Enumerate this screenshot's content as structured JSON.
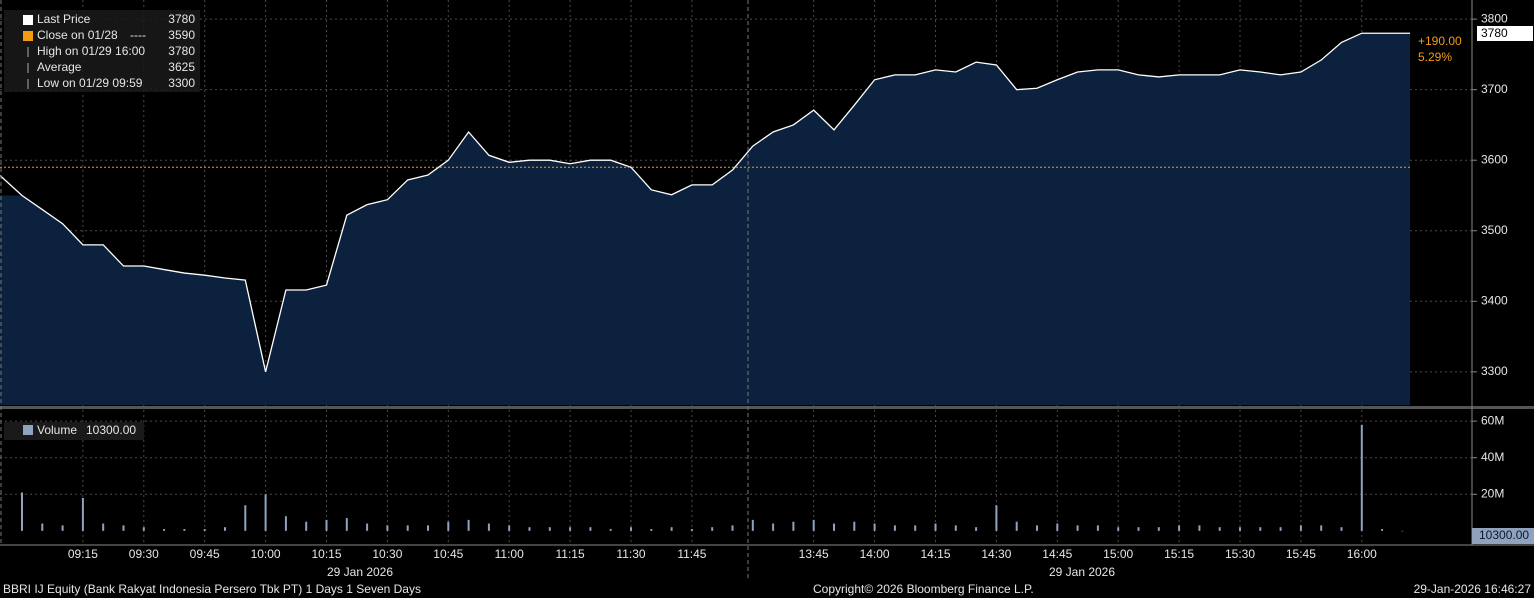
{
  "chart_data": [
    {
      "type": "area",
      "x": [
        "09:00",
        "09:05",
        "09:10",
        "09:15",
        "09:20",
        "09:25",
        "09:30",
        "09:35",
        "09:40",
        "09:45",
        "09:50",
        "09:55",
        "10:00",
        "10:05",
        "10:10",
        "10:15",
        "10:20",
        "10:25",
        "10:30",
        "10:35",
        "10:40",
        "10:45",
        "10:50",
        "10:55",
        "11:00",
        "11:05",
        "11:10",
        "11:15",
        "11:20",
        "11:25",
        "11:30",
        "11:35",
        "11:40",
        "11:45",
        "11:50",
        "11:55",
        "13:30",
        "13:35",
        "13:40",
        "13:45",
        "13:50",
        "13:55",
        "14:00",
        "14:05",
        "14:10",
        "14:15",
        "14:20",
        "14:25",
        "14:30",
        "14:35",
        "14:40",
        "14:45",
        "14:50",
        "14:55",
        "15:00",
        "15:05",
        "15:10",
        "15:15",
        "15:20",
        "15:25",
        "15:30",
        "15:35",
        "15:40",
        "15:45",
        "15:50",
        "15:55",
        "16:00",
        "16:05",
        "16:10"
      ],
      "series": [
        {
          "name": "Last Price",
          "color": "#ffffff",
          "fill": "#0b213d",
          "values": [
            3550,
            3530,
            3510,
            3480,
            3480,
            3450,
            3450,
            3445,
            3440,
            3437,
            3433,
            3430,
            3300,
            3416,
            3416,
            3423,
            3522,
            3537,
            3544,
            3572,
            3579,
            3600,
            3640,
            3607,
            3597,
            3600,
            3600,
            3595,
            3600,
            3600,
            3590,
            3558,
            3551,
            3565,
            3565,
            3586,
            3620,
            3640,
            3650,
            3671,
            3643,
            3678,
            3714,
            3721,
            3721,
            3728,
            3725,
            3739,
            3735,
            3700,
            3702,
            3714,
            3725,
            3728,
            3728,
            3721,
            3718,
            3721,
            3721,
            3721,
            3728,
            3725,
            3721,
            3725,
            3742,
            3767,
            3780,
            3780,
            3780
          ]
        }
      ],
      "legend": [
        {
          "label": "Last Price",
          "value": 3780,
          "color": "#ffffff"
        },
        {
          "label": "Close on 01/28",
          "value": 3590,
          "color": "#f39c12",
          "style": "----"
        },
        {
          "label": "High on 01/29 16:00",
          "value": 3780
        },
        {
          "label": "Average",
          "value": 3625
        },
        {
          "label": "Low on 01/29 09:59",
          "value": 3300
        }
      ],
      "change": {
        "value": 190,
        "label": "+190.00"
      },
      "change_pct": {
        "value": 5.29,
        "label": "5.29%"
      },
      "ylim": [
        3253,
        3820
      ],
      "yticks": [
        3300,
        3400,
        3500,
        3600,
        3700,
        3800
      ],
      "xticks": [
        "09:15",
        "09:30",
        "09:45",
        "10:00",
        "10:15",
        "10:30",
        "10:45",
        "11:00",
        "11:15",
        "11:30",
        "11:45",
        "13:45",
        "14:00",
        "14:15",
        "14:30",
        "14:45",
        "15:00",
        "15:15",
        "15:30",
        "15:45",
        "16:00"
      ],
      "date_labels": [
        "29 Jan 2026",
        "29 Jan 2026"
      ],
      "grid": true
    },
    {
      "type": "bar",
      "name": "Volume",
      "color": "#8fa3bf",
      "value": 10300,
      "value_label": "10300.00",
      "values": [
        21000000,
        4000000,
        3000000,
        18000000,
        4000000,
        3000000,
        2000000,
        1000000,
        1000000,
        1000000,
        2000000,
        14000000,
        20000000,
        8000000,
        5000000,
        6000000,
        7000000,
        4000000,
        3000000,
        3000000,
        3000000,
        5000000,
        6000000,
        4000000,
        3000000,
        2000000,
        2000000,
        2000000,
        2000000,
        1000000,
        2000000,
        1000000,
        2000000,
        1000000,
        2000000,
        3000000,
        6000000,
        4000000,
        5000000,
        6000000,
        4000000,
        5000000,
        4000000,
        3000000,
        3000000,
        4000000,
        3000000,
        2000000,
        14000000,
        5000000,
        3000000,
        4000000,
        3000000,
        3000000,
        2000000,
        2000000,
        2000000,
        3000000,
        3000000,
        2000000,
        2000000,
        2000000,
        2000000,
        3000000,
        3000000,
        2000000,
        58000000,
        1000000,
        10300
      ],
      "ylim": [
        -5000000,
        65000000
      ],
      "yticks": [
        {
          "value": 20000000,
          "label": "20M"
        },
        {
          "value": 40000000,
          "label": "40M"
        },
        {
          "value": 60000000,
          "label": "60M"
        }
      ],
      "grid": true
    }
  ],
  "footer": {
    "security": "BBRI IJ Equity (Bank Rakyat Indonesia Persero Tbk PT) 1 Days 1 Seven Days",
    "copyright": "Copyright© 2026 Bloomberg Finance L.P.",
    "timestamp": "29-Jan-2026 16:46:27"
  }
}
